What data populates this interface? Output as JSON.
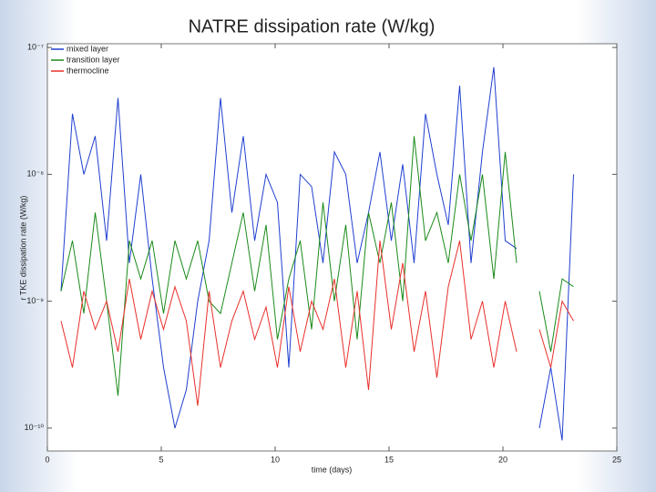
{
  "chart_data": {
    "type": "line",
    "title": "NATRE dissipation rate (W/kg)",
    "xlabel": "time (days)",
    "ylabel": "r TKE dissipation rate (W/kg)",
    "log_y": true,
    "grid": false,
    "legend": "upper left",
    "xlim": [
      0,
      25
    ],
    "xticks": [
      0,
      5,
      10,
      15,
      20,
      25
    ],
    "ylim": [
      6.6e-11,
      1.07e-07
    ],
    "yticks": [
      {
        "value": 1e-10,
        "label": "10⁻¹⁰"
      },
      {
        "value": 1e-09,
        "label": "10⁻⁹"
      },
      {
        "value": 1e-08,
        "label": "10⁻⁸"
      },
      {
        "value": 1e-07,
        "label": "10⁻⁷"
      }
    ],
    "x": [
      0.6,
      1.1,
      1.6,
      2.1,
      2.6,
      3.1,
      3.6,
      4.1,
      4.6,
      5.1,
      5.6,
      6.1,
      6.6,
      7.1,
      7.6,
      8.1,
      8.6,
      9.1,
      9.6,
      10.1,
      10.6,
      11.1,
      11.6,
      12.1,
      12.6,
      13.1,
      13.6,
      14.1,
      14.6,
      15.1,
      15.6,
      16.1,
      16.6,
      17.1,
      17.6,
      18.1,
      18.6,
      19.1,
      19.6,
      20.1,
      20.6,
      21.1,
      21.6,
      22.1,
      22.6,
      23.1
    ],
    "series": [
      {
        "name": "mixed layer",
        "color": "#1f3fd0",
        "values": [
          1.2e-09,
          3e-08,
          1e-08,
          2e-08,
          3e-09,
          4e-08,
          2e-09,
          1e-08,
          1.5e-09,
          3e-10,
          1e-10,
          2e-10,
          1e-09,
          3e-09,
          4e-08,
          5e-09,
          2e-08,
          3e-09,
          1e-08,
          6e-09,
          3e-10,
          1e-08,
          8e-09,
          2e-09,
          1.5e-08,
          1e-08,
          2e-09,
          5e-09,
          1.5e-08,
          3e-09,
          1.2e-08,
          2e-09,
          3e-08,
          1e-08,
          4e-09,
          5e-08,
          2e-09,
          1.5e-08,
          7e-08,
          3e-09,
          2.6e-09,
          null,
          1e-10,
          3e-10,
          8e-11,
          1e-08
        ]
      },
      {
        "name": "transition layer",
        "color": "#1a8a1a",
        "values": [
          1.2e-09,
          3e-09,
          8e-10,
          5e-09,
          1e-09,
          1.8e-10,
          3e-09,
          1.5e-09,
          3e-09,
          8e-10,
          3e-09,
          1.5e-09,
          3e-09,
          1e-09,
          8e-10,
          2e-09,
          5e-09,
          1.2e-09,
          4e-09,
          5e-10,
          1.5e-09,
          3e-09,
          6e-10,
          6e-09,
          1e-09,
          4e-09,
          5e-10,
          5e-09,
          2e-09,
          6e-09,
          1e-09,
          2e-08,
          3e-09,
          5e-09,
          2e-09,
          1e-08,
          3e-09,
          1e-08,
          1.5e-09,
          1.5e-08,
          2e-09,
          null,
          1.2e-09,
          4e-10,
          1.5e-09,
          1.3e-09
        ]
      },
      {
        "name": "thermocline",
        "color": "#e8302a",
        "values": [
          7e-10,
          3e-10,
          1.2e-09,
          6e-10,
          1e-09,
          4e-10,
          1.5e-09,
          5e-10,
          1.2e-09,
          6e-10,
          1.3e-09,
          7e-10,
          1.5e-10,
          1.2e-09,
          3e-10,
          7e-10,
          1.2e-09,
          5e-10,
          9e-10,
          3e-10,
          1.3e-09,
          4e-10,
          1e-09,
          6e-10,
          1.5e-09,
          3e-10,
          1.2e-09,
          2e-10,
          3e-09,
          6e-10,
          2e-09,
          4e-10,
          1.2e-09,
          2.5e-10,
          1.3e-09,
          3e-09,
          5e-10,
          1e-09,
          3e-10,
          1e-09,
          4e-10,
          null,
          6e-10,
          3e-10,
          1e-09,
          7e-10
        ]
      }
    ]
  }
}
